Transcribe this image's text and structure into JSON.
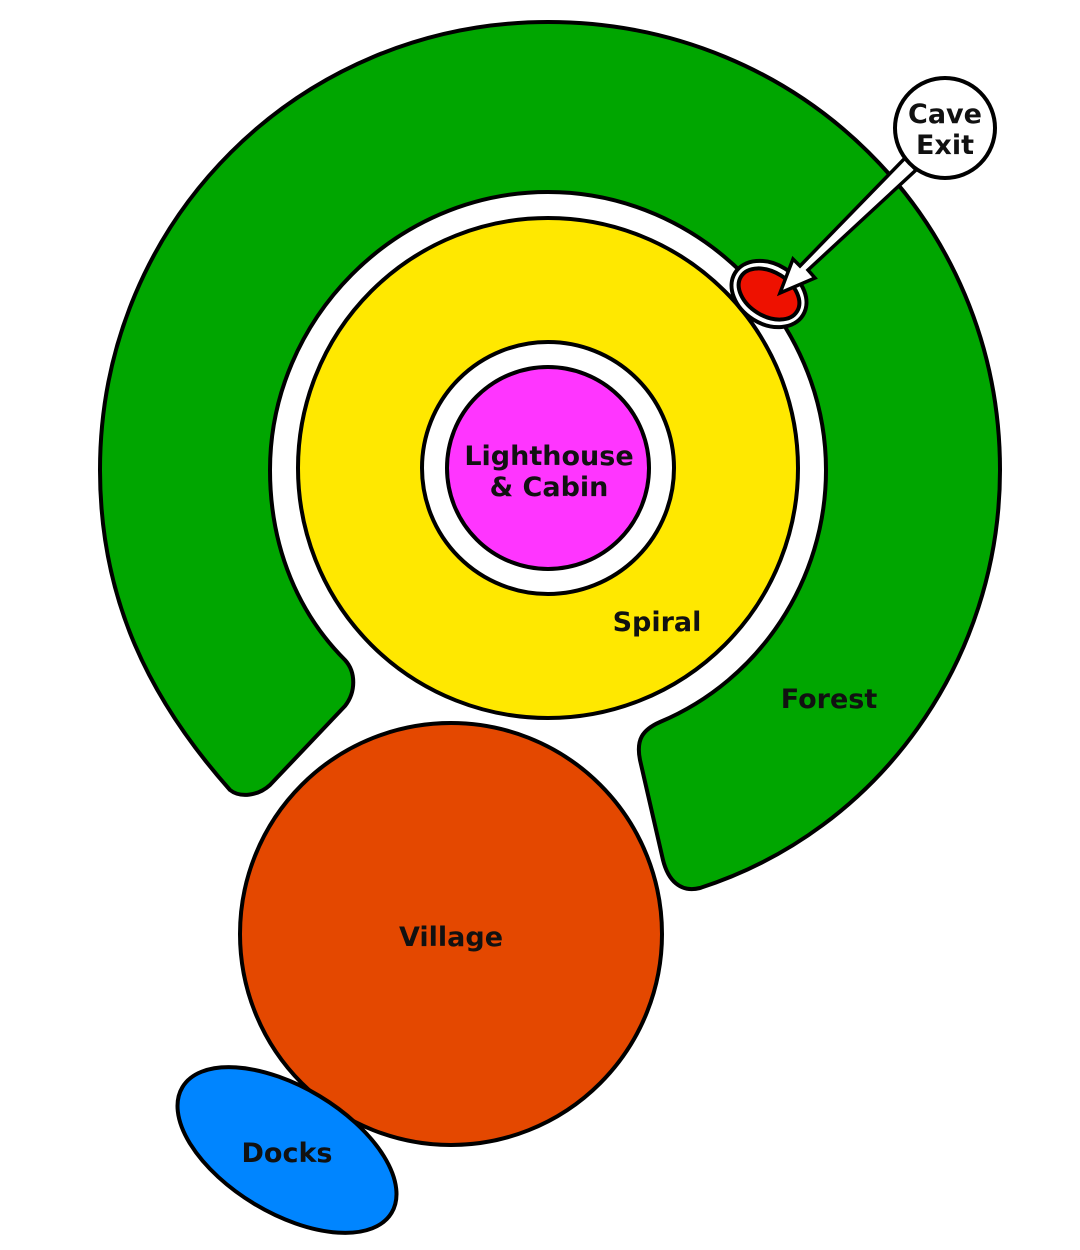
{
  "map": {
    "regions": [
      {
        "id": "forest",
        "label": "Forest",
        "color": "#00a600"
      },
      {
        "id": "spiral",
        "label": "Spiral",
        "color": "#ffe800"
      },
      {
        "id": "lighthouse",
        "label_line1": "Lighthouse",
        "label_line2": "& Cabin",
        "color": "#ff35ff"
      },
      {
        "id": "village",
        "label": "Village",
        "color": "#e44800"
      },
      {
        "id": "docks",
        "label": "Docks",
        "color": "#0085ff"
      },
      {
        "id": "cave",
        "color": "#ee1100"
      }
    ],
    "callout": {
      "line1": "Cave",
      "line2": "Exit",
      "arrow_icon": "arrow-icon"
    }
  }
}
